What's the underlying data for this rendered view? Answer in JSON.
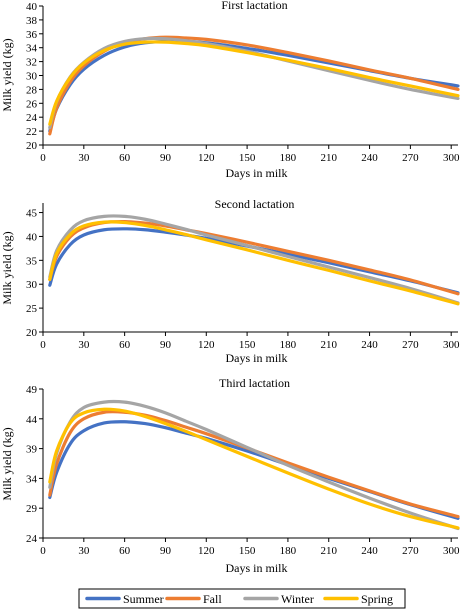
{
  "chart_data": [
    {
      "type": "line",
      "title": "First lactation",
      "xlabel": "Days in milk",
      "ylabel": "Milk yield (kg)",
      "xlim": [
        0,
        305
      ],
      "ylim": [
        20,
        40
      ],
      "xticks": [
        0,
        30,
        60,
        90,
        120,
        150,
        180,
        210,
        240,
        270,
        300
      ],
      "yticks": [
        20,
        22,
        24,
        26,
        28,
        30,
        32,
        34,
        36,
        38,
        40
      ],
      "grid": false,
      "series": [
        {
          "name": "Summer",
          "x": [
            5,
            10,
            20,
            30,
            45,
            60,
            75,
            90,
            105,
            120,
            150,
            180,
            210,
            240,
            270,
            305
          ],
          "y": [
            22.0,
            25.2,
            28.7,
            30.9,
            32.9,
            34.1,
            34.7,
            34.9,
            34.9,
            34.7,
            33.9,
            32.9,
            31.8,
            30.7,
            29.6,
            28.5
          ]
        },
        {
          "name": "Fall",
          "x": [
            5,
            10,
            20,
            30,
            45,
            60,
            75,
            90,
            105,
            120,
            150,
            180,
            210,
            240,
            270,
            305
          ],
          "y": [
            21.6,
            25.3,
            29.1,
            31.4,
            33.5,
            34.7,
            35.3,
            35.5,
            35.4,
            35.2,
            34.4,
            33.3,
            32.1,
            30.8,
            29.6,
            28.0
          ]
        },
        {
          "name": "Winter",
          "x": [
            5,
            10,
            20,
            30,
            45,
            60,
            75,
            90,
            105,
            120,
            150,
            180,
            210,
            240,
            270,
            305
          ],
          "y": [
            22.5,
            26.2,
            29.8,
            31.9,
            33.9,
            34.9,
            35.3,
            35.3,
            35.0,
            34.6,
            33.5,
            32.1,
            30.7,
            29.3,
            28.0,
            26.7
          ]
        },
        {
          "name": "Spring",
          "x": [
            5,
            10,
            20,
            30,
            45,
            60,
            75,
            90,
            105,
            120,
            150,
            180,
            210,
            240,
            270,
            305
          ],
          "y": [
            23.0,
            26.3,
            29.7,
            31.8,
            33.6,
            34.5,
            34.8,
            34.8,
            34.6,
            34.3,
            33.3,
            32.2,
            31.0,
            29.7,
            28.5,
            27.1
          ]
        }
      ]
    },
    {
      "type": "line",
      "title": "Second lactation",
      "xlabel": "Days in milk",
      "ylabel": "Milk yield (kg)",
      "xlim": [
        0,
        305
      ],
      "ylim": [
        20,
        47
      ],
      "xticks": [
        0,
        30,
        60,
        90,
        120,
        150,
        180,
        210,
        240,
        270,
        300
      ],
      "yticks": [
        20,
        25,
        30,
        35,
        40,
        45
      ],
      "grid": false,
      "series": [
        {
          "name": "Summer",
          "x": [
            5,
            10,
            20,
            30,
            45,
            60,
            75,
            90,
            105,
            120,
            150,
            180,
            210,
            240,
            270,
            305
          ],
          "y": [
            29.8,
            34.2,
            38.3,
            40.3,
            41.4,
            41.6,
            41.4,
            40.9,
            40.3,
            39.6,
            38.0,
            36.3,
            34.5,
            32.6,
            30.7,
            28.2
          ]
        },
        {
          "name": "Fall",
          "x": [
            5,
            10,
            20,
            30,
            45,
            60,
            75,
            90,
            105,
            120,
            150,
            180,
            210,
            240,
            270,
            305
          ],
          "y": [
            31.0,
            35.8,
            39.9,
            41.8,
            42.9,
            43.1,
            42.8,
            42.2,
            41.4,
            40.6,
            38.8,
            36.9,
            35.0,
            33.0,
            30.9,
            28.0
          ]
        },
        {
          "name": "Winter",
          "x": [
            5,
            10,
            20,
            30,
            45,
            60,
            75,
            90,
            105,
            120,
            150,
            180,
            210,
            240,
            270,
            305
          ],
          "y": [
            31.5,
            37.0,
            41.3,
            43.3,
            44.2,
            44.2,
            43.6,
            42.6,
            41.5,
            40.3,
            38.1,
            35.8,
            33.6,
            31.4,
            29.1,
            26.1
          ]
        },
        {
          "name": "Spring",
          "x": [
            5,
            10,
            20,
            30,
            45,
            60,
            75,
            90,
            105,
            120,
            150,
            180,
            210,
            240,
            270,
            305
          ],
          "y": [
            31.0,
            36.4,
            40.4,
            42.2,
            43.0,
            42.9,
            42.3,
            41.4,
            40.4,
            39.3,
            37.2,
            35.0,
            32.9,
            30.7,
            28.6,
            25.9
          ]
        }
      ]
    },
    {
      "type": "line",
      "title": "Third lactation",
      "xlabel": "Days in milk",
      "ylabel": "Milk yield (kg)",
      "xlim": [
        0,
        305
      ],
      "ylim": [
        24,
        49
      ],
      "xticks": [
        0,
        30,
        60,
        90,
        120,
        150,
        180,
        210,
        240,
        270,
        300
      ],
      "yticks": [
        24,
        29,
        34,
        39,
        44,
        49
      ],
      "grid": false,
      "series": [
        {
          "name": "Summer",
          "x": [
            5,
            10,
            20,
            30,
            45,
            60,
            75,
            90,
            105,
            120,
            150,
            180,
            210,
            240,
            270,
            305
          ],
          "y": [
            30.8,
            35.0,
            39.8,
            42.0,
            43.3,
            43.5,
            43.2,
            42.5,
            41.6,
            40.7,
            38.6,
            36.3,
            34.0,
            31.8,
            29.6,
            27.3
          ]
        },
        {
          "name": "Fall",
          "x": [
            5,
            10,
            20,
            30,
            45,
            60,
            75,
            90,
            105,
            120,
            150,
            180,
            210,
            240,
            270,
            305
          ],
          "y": [
            31.2,
            36.4,
            41.7,
            44.0,
            45.1,
            45.1,
            44.6,
            43.7,
            42.6,
            41.5,
            39.1,
            36.6,
            34.2,
            31.9,
            29.7,
            27.6
          ]
        },
        {
          "name": "Winter",
          "x": [
            5,
            10,
            20,
            30,
            45,
            60,
            75,
            90,
            105,
            120,
            150,
            180,
            210,
            240,
            270,
            305
          ],
          "y": [
            32.5,
            38.2,
            43.5,
            45.9,
            46.8,
            46.8,
            46.1,
            45.0,
            43.6,
            42.2,
            39.2,
            36.2,
            33.4,
            30.7,
            28.2,
            25.6
          ]
        },
        {
          "name": "Spring",
          "x": [
            5,
            10,
            20,
            30,
            45,
            60,
            75,
            90,
            105,
            120,
            150,
            180,
            210,
            240,
            270,
            305
          ],
          "y": [
            33.4,
            38.6,
            43.3,
            45.0,
            45.6,
            45.3,
            44.4,
            43.2,
            41.9,
            40.5,
            37.7,
            34.9,
            32.2,
            29.7,
            27.6,
            25.7
          ]
        }
      ]
    }
  ],
  "legend": {
    "placement": "bottom",
    "items": [
      {
        "label": "Summer",
        "color": "#4472c4"
      },
      {
        "label": "Fall",
        "color": "#ed7d31"
      },
      {
        "label": "Winter",
        "color": "#a5a5a5"
      },
      {
        "label": "Spring",
        "color": "#ffc000"
      }
    ]
  },
  "colors": {
    "Summer": "#4472c4",
    "Fall": "#ed7d31",
    "Winter": "#a5a5a5",
    "Spring": "#ffc000"
  }
}
